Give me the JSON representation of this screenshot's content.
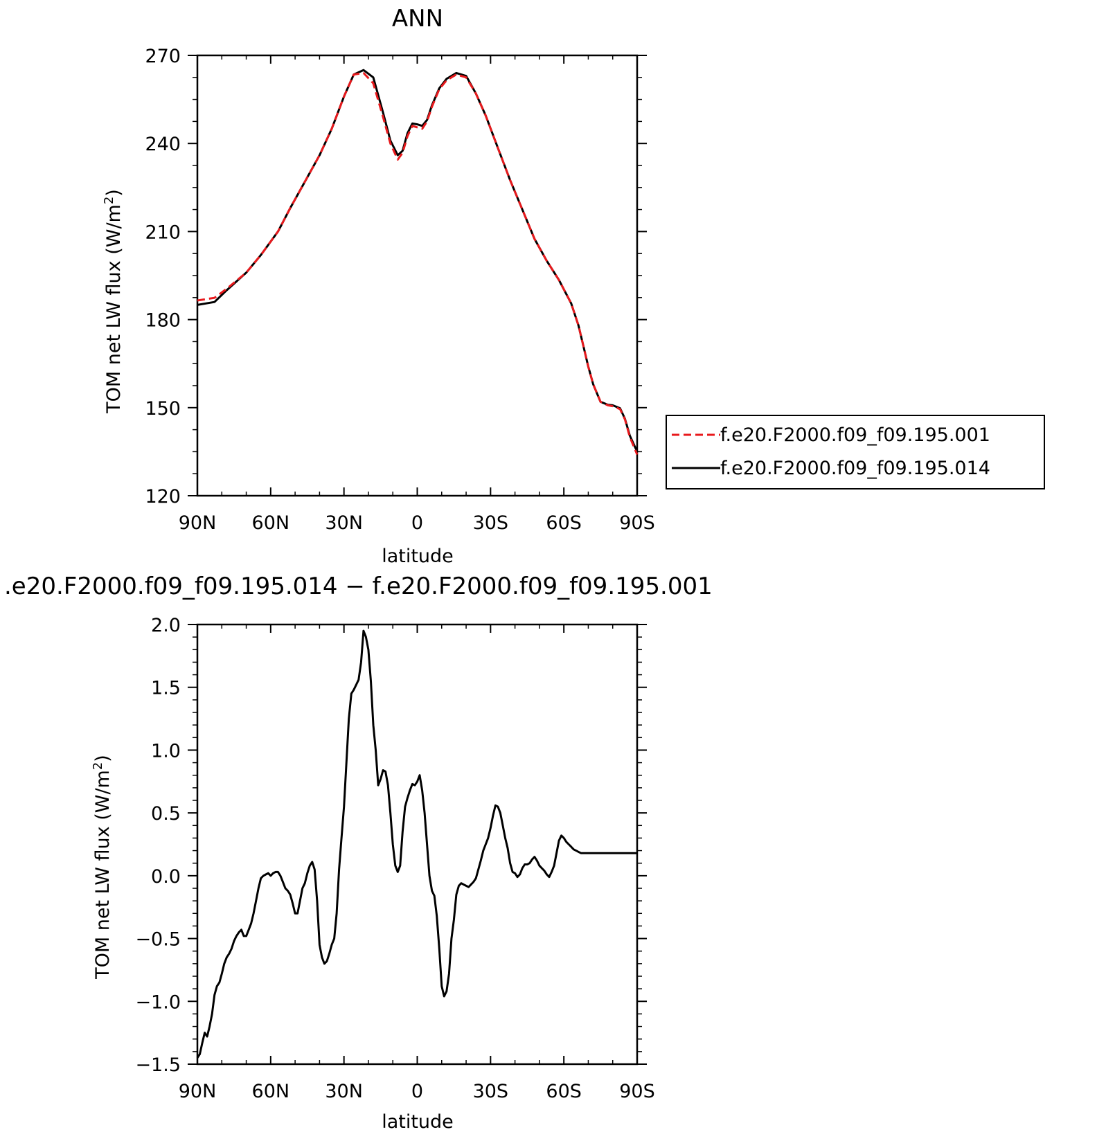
{
  "chart_data": [
    {
      "type": "line",
      "title": "ANN",
      "xlabel": "latitude",
      "ylabel": "TOM net LW flux (W/m²)",
      "ylabel_main": "TOM net LW flux (W/m",
      "ylabel_sup": "2",
      "ylabel_close": ")",
      "xlim": [
        90,
        -90
      ],
      "ylim": [
        120,
        270
      ],
      "x_ticks": [
        {
          "value": 90,
          "label": "90N"
        },
        {
          "value": 60,
          "label": "60N"
        },
        {
          "value": 30,
          "label": "30N"
        },
        {
          "value": 0,
          "label": "0"
        },
        {
          "value": -30,
          "label": "30S"
        },
        {
          "value": -60,
          "label": "60S"
        },
        {
          "value": -90,
          "label": "90S"
        }
      ],
      "y_ticks": [
        {
          "value": 120,
          "label": "120"
        },
        {
          "value": 150,
          "label": "150"
        },
        {
          "value": 180,
          "label": "180"
        },
        {
          "value": 210,
          "label": "210"
        },
        {
          "value": 240,
          "label": "240"
        },
        {
          "value": 270,
          "label": "270"
        }
      ],
      "legend_position": "right",
      "series": [
        {
          "name": "f.e20.F2000.f09_f09.195.001",
          "color": "#e8191c",
          "dash": "dashed",
          "x": [
            90,
            83,
            78,
            70,
            64,
            57,
            52,
            45,
            40,
            35,
            30,
            26,
            22,
            18,
            14,
            11,
            8,
            6,
            4,
            2,
            0,
            -2,
            -4,
            -6,
            -9,
            -12,
            -16,
            -20,
            -24,
            -28,
            -33,
            -38,
            -43,
            -48,
            -53,
            -58,
            -63,
            -66,
            -68,
            -70,
            -72,
            -75,
            -78,
            -80,
            -83,
            -85,
            -87,
            -90
          ],
          "y": [
            186.5,
            187.4,
            190.5,
            196.0,
            202.0,
            210.0,
            218.0,
            228.5,
            236.0,
            245.0,
            256.0,
            263.5,
            264.0,
            260.5,
            249.0,
            240.0,
            234.5,
            236.8,
            242.5,
            246.0,
            245.5,
            245.0,
            247.5,
            252.5,
            258.5,
            261.5,
            263.5,
            262.5,
            257.0,
            249.5,
            238.5,
            227.5,
            217.5,
            207.5,
            200.0,
            193.5,
            185.5,
            178.0,
            171.0,
            164.0,
            158.0,
            152.0,
            150.8,
            150.5,
            149.5,
            146.0,
            140.0,
            134.0
          ]
        },
        {
          "name": "f.e20.F2000.f09_f09.195.014",
          "color": "#000000",
          "dash": "solid",
          "x": [
            90,
            83,
            78,
            70,
            64,
            57,
            52,
            45,
            40,
            35,
            30,
            26,
            22,
            18,
            14,
            11,
            8,
            6,
            4,
            2,
            0,
            -2,
            -4,
            -6,
            -9,
            -12,
            -16,
            -20,
            -24,
            -28,
            -33,
            -38,
            -43,
            -48,
            -53,
            -58,
            -63,
            -66,
            -68,
            -70,
            -72,
            -75,
            -78,
            -80,
            -83,
            -85,
            -87,
            -90
          ],
          "y": [
            185.0,
            186.0,
            190.0,
            196.0,
            202.0,
            210.0,
            218.0,
            228.5,
            236.0,
            245.0,
            256.0,
            263.5,
            265.0,
            262.5,
            250.5,
            241.0,
            236.0,
            237.5,
            243.5,
            246.8,
            246.5,
            246.0,
            248.0,
            253.0,
            258.8,
            262.0,
            264.0,
            263.0,
            257.0,
            249.5,
            238.5,
            227.5,
            217.5,
            207.5,
            200.0,
            193.5,
            185.5,
            178.0,
            171.0,
            164.0,
            158.0,
            152.0,
            151.0,
            150.8,
            149.8,
            146.2,
            140.5,
            135.0
          ]
        }
      ]
    },
    {
      "type": "line",
      "title": ".e20.F2000.f09_f09.195.014 − f.e20.F2000.f09_f09.195.001",
      "xlabel": "latitude",
      "ylabel": "TOM net LW flux (W/m²)",
      "ylabel_main": "TOM net LW flux (W/m",
      "ylabel_sup": "2",
      "ylabel_close": ")",
      "xlim": [
        90,
        -90
      ],
      "ylim": [
        -1.5,
        2.0
      ],
      "x_ticks": [
        {
          "value": 90,
          "label": "90N"
        },
        {
          "value": 60,
          "label": "60N"
        },
        {
          "value": 30,
          "label": "30N"
        },
        {
          "value": 0,
          "label": "0"
        },
        {
          "value": -30,
          "label": "30S"
        },
        {
          "value": -60,
          "label": "60S"
        },
        {
          "value": -90,
          "label": "90S"
        }
      ],
      "y_ticks": [
        {
          "value": -1.5,
          "label": "−1.5"
        },
        {
          "value": -1.0,
          "label": "−1.0"
        },
        {
          "value": -0.5,
          "label": "−0.5"
        },
        {
          "value": 0.0,
          "label": "0.0"
        },
        {
          "value": 0.5,
          "label": "0.5"
        },
        {
          "value": 1.0,
          "label": "1.0"
        },
        {
          "value": 1.5,
          "label": "1.5"
        },
        {
          "value": 2.0,
          "label": "2.0"
        }
      ],
      "series": [
        {
          "name": "",
          "color": "#000000",
          "dash": "solid",
          "x": [
            90,
            89,
            88,
            87,
            86,
            85,
            84,
            83,
            82,
            81,
            80,
            79,
            78,
            77,
            76,
            75,
            74,
            73,
            72,
            71,
            70,
            69,
            68,
            67,
            66,
            65,
            64,
            63,
            62,
            61,
            60,
            59,
            58,
            57,
            56,
            55,
            54,
            53,
            52,
            51,
            50,
            49,
            48,
            47,
            46,
            45,
            44,
            43,
            42,
            41,
            40,
            39,
            38,
            37,
            36,
            35,
            34,
            33,
            32,
            31,
            30,
            29,
            28,
            27,
            26,
            25,
            24,
            23,
            22,
            21,
            20,
            19,
            18,
            17,
            16,
            15,
            14,
            13,
            12,
            11,
            10,
            9,
            8,
            7,
            6,
            5,
            4,
            3,
            2,
            1,
            0,
            -1,
            -2,
            -3,
            -4,
            -5,
            -6,
            -7,
            -8,
            -9,
            -10,
            -11,
            -12,
            -13,
            -14,
            -15,
            -16,
            -17,
            -18,
            -19,
            -20,
            -21,
            -22,
            -23,
            -24,
            -25,
            -26,
            -27,
            -28,
            -29,
            -30,
            -31,
            -32,
            -33,
            -34,
            -35,
            -36,
            -37,
            -38,
            -39,
            -40,
            -41,
            -42,
            -43,
            -44,
            -45,
            -46,
            -47,
            -48,
            -49,
            -50,
            -51,
            -52,
            -53,
            -54,
            -55,
            -56,
            -57,
            -58,
            -59,
            -60,
            -61,
            -62,
            -63,
            -64,
            -65,
            -66,
            -67,
            -68,
            -69,
            -70,
            -71,
            -72,
            -73,
            -74,
            -75,
            -76,
            -77,
            -78,
            -79,
            -80,
            -81,
            -82,
            -83,
            -84,
            -85,
            -86,
            -87,
            -88,
            -89,
            -90
          ],
          "y": [
            -1.45,
            -1.42,
            -1.33,
            -1.25,
            -1.28,
            -1.2,
            -1.1,
            -0.95,
            -0.88,
            -0.85,
            -0.78,
            -0.7,
            -0.65,
            -0.62,
            -0.58,
            -0.52,
            -0.48,
            -0.45,
            -0.43,
            -0.48,
            -0.48,
            -0.43,
            -0.38,
            -0.3,
            -0.2,
            -0.1,
            -0.02,
            0.0,
            0.01,
            0.02,
            0.0,
            0.02,
            0.03,
            0.03,
            0.0,
            -0.05,
            -0.1,
            -0.12,
            -0.15,
            -0.22,
            -0.3,
            -0.3,
            -0.2,
            -0.1,
            -0.06,
            0.02,
            0.08,
            0.11,
            0.05,
            -0.2,
            -0.55,
            -0.65,
            -0.7,
            -0.68,
            -0.62,
            -0.55,
            -0.5,
            -0.3,
            0.05,
            0.3,
            0.55,
            0.9,
            1.25,
            1.45,
            1.48,
            1.52,
            1.56,
            1.7,
            1.95,
            1.9,
            1.8,
            1.55,
            1.2,
            1.0,
            0.72,
            0.77,
            0.84,
            0.83,
            0.72,
            0.5,
            0.25,
            0.08,
            0.03,
            0.08,
            0.35,
            0.55,
            0.62,
            0.68,
            0.73,
            0.72,
            0.75,
            0.8,
            0.68,
            0.5,
            0.25,
            0.0,
            -0.12,
            -0.16,
            -0.32,
            -0.58,
            -0.88,
            -0.96,
            -0.92,
            -0.78,
            -0.5,
            -0.35,
            -0.15,
            -0.08,
            -0.06,
            -0.07,
            -0.08,
            -0.09,
            -0.07,
            -0.05,
            -0.02,
            0.05,
            0.12,
            0.2,
            0.25,
            0.3,
            0.38,
            0.48,
            0.56,
            0.55,
            0.5,
            0.4,
            0.3,
            0.22,
            0.1,
            0.03,
            0.02,
            -0.01,
            0.01,
            0.06,
            0.09,
            0.09,
            0.1,
            0.13,
            0.15,
            0.12,
            0.08,
            0.06,
            0.04,
            0.01,
            -0.01,
            0.03,
            0.08,
            0.18,
            0.28,
            0.32,
            0.3,
            0.27,
            0.25,
            0.23,
            0.21,
            0.2,
            0.19,
            0.18,
            0.18,
            0.18,
            0.18,
            0.18,
            0.18,
            0.18,
            0.18,
            0.18,
            0.18,
            0.18,
            0.18,
            0.18,
            0.18,
            0.18,
            0.18,
            0.18,
            0.18,
            0.18,
            0.18,
            0.18,
            0.18,
            0.18,
            0.18
          ]
        }
      ]
    }
  ]
}
